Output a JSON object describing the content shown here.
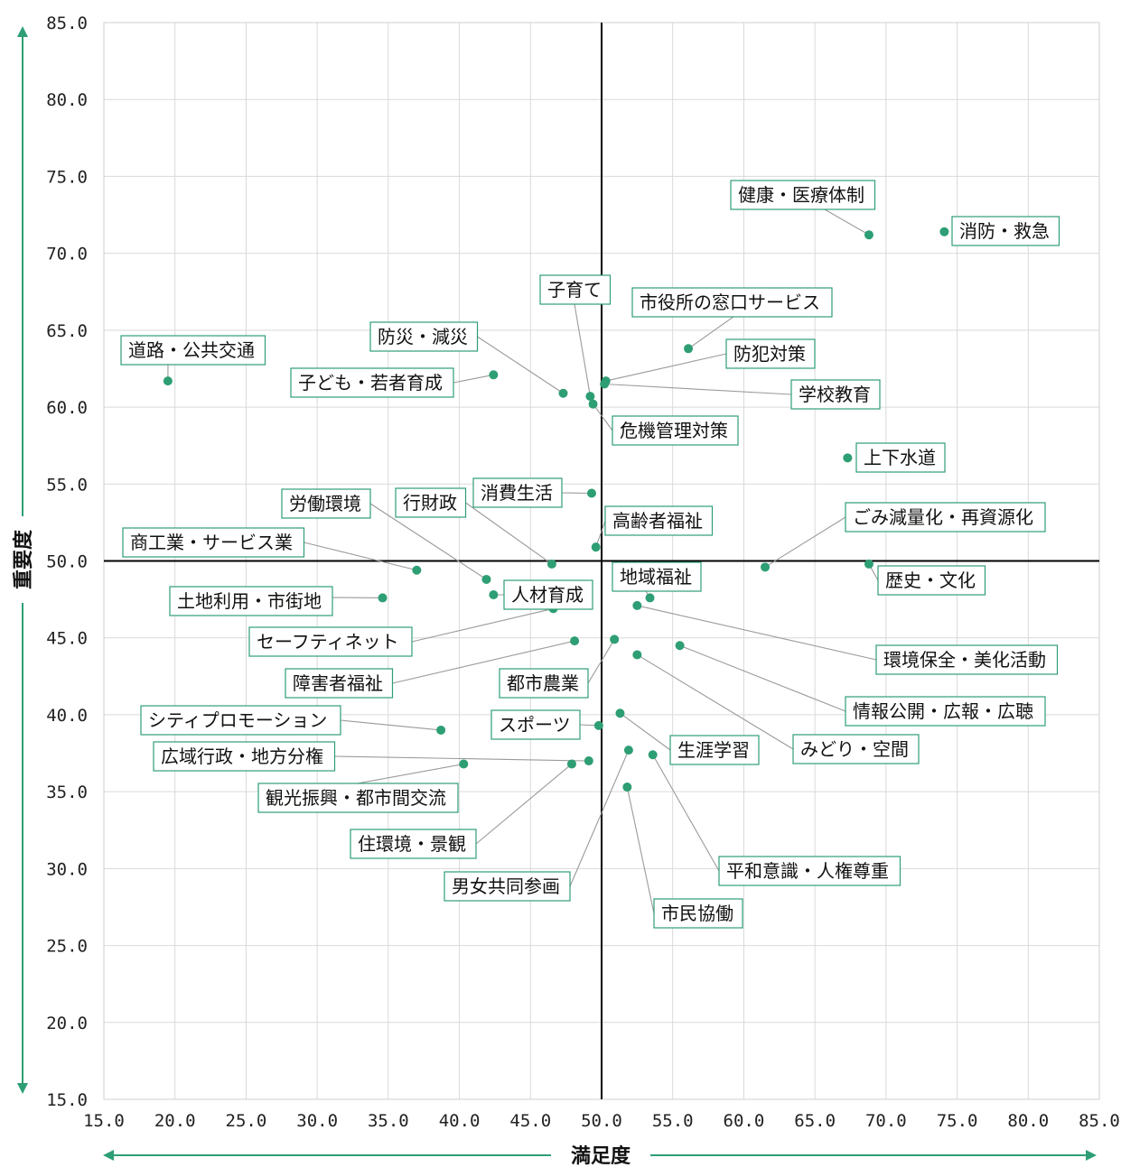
{
  "chart_data": {
    "type": "scatter",
    "xlabel": "満足度",
    "ylabel": "重要度",
    "xlim": [
      15,
      85
    ],
    "ylim": [
      15,
      85
    ],
    "xticks": [
      "15.0",
      "20.0",
      "25.0",
      "30.0",
      "35.0",
      "40.0",
      "45.0",
      "50.0",
      "55.0",
      "60.0",
      "65.0",
      "70.0",
      "75.0",
      "80.0",
      "85.0"
    ],
    "yticks": [
      "15.0",
      "20.0",
      "25.0",
      "30.0",
      "35.0",
      "40.0",
      "45.0",
      "50.0",
      "55.0",
      "60.0",
      "65.0",
      "70.0",
      "75.0",
      "80.0",
      "85.0"
    ],
    "grid": true,
    "reference_lines": {
      "x": 50,
      "y": 50
    },
    "colors": {
      "point": "#2e9e74",
      "label_border": "#2e9e74",
      "arrow": "#2e9e74",
      "grid": "#d9d9d9",
      "leader": "#9a9a9a"
    },
    "points": [
      {
        "name": "健康・医療体制",
        "x": 68.8,
        "y": 71.2
      },
      {
        "name": "消防・救急",
        "x": 74.1,
        "y": 71.4
      },
      {
        "name": "子育て",
        "x": 49.2,
        "y": 60.7
      },
      {
        "name": "市役所の窓口サービス",
        "x": 56.1,
        "y": 63.8
      },
      {
        "name": "防災・減災",
        "x": 47.3,
        "y": 60.9
      },
      {
        "name": "防犯対策",
        "x": 50.3,
        "y": 61.7
      },
      {
        "name": "道路・公共交通",
        "x": 19.5,
        "y": 61.7
      },
      {
        "name": "子ども・若者育成",
        "x": 42.4,
        "y": 62.1
      },
      {
        "name": "学校教育",
        "x": 50.2,
        "y": 61.5
      },
      {
        "name": "危機管理対策",
        "x": 49.4,
        "y": 60.2
      },
      {
        "name": "上下水道",
        "x": 67.3,
        "y": 56.7
      },
      {
        "name": "消費生活",
        "x": 49.3,
        "y": 54.4
      },
      {
        "name": "労働環境",
        "x": 41.9,
        "y": 48.8
      },
      {
        "name": "行財政",
        "x": 46.5,
        "y": 49.8
      },
      {
        "name": "高齢者福祉",
        "x": 49.6,
        "y": 50.9
      },
      {
        "name": "ごみ減量化・再資源化",
        "x": 61.5,
        "y": 49.6
      },
      {
        "name": "商工業・サービス業",
        "x": 37.0,
        "y": 49.4
      },
      {
        "name": "歴史・文化",
        "x": 68.8,
        "y": 49.8
      },
      {
        "name": "地域福祉",
        "x": 53.4,
        "y": 47.6
      },
      {
        "name": "土地利用・市街地",
        "x": 34.6,
        "y": 47.6
      },
      {
        "name": "人材育成",
        "x": 42.4,
        "y": 47.8
      },
      {
        "name": "セーフティネット",
        "x": 46.6,
        "y": 46.9
      },
      {
        "name": "環境保全・美化活動",
        "x": 52.5,
        "y": 47.1
      },
      {
        "name": "障害者福祉",
        "x": 48.1,
        "y": 44.8
      },
      {
        "name": "都市農業",
        "x": 50.9,
        "y": 44.9
      },
      {
        "name": "情報公開・広報・広聴",
        "x": 55.5,
        "y": 44.5
      },
      {
        "name": "みどり・空間",
        "x": 52.5,
        "y": 43.9
      },
      {
        "name": "シティプロモーション",
        "x": 38.7,
        "y": 39.0
      },
      {
        "name": "スポーツ",
        "x": 49.8,
        "y": 39.3
      },
      {
        "name": "生涯学習",
        "x": 51.3,
        "y": 40.1
      },
      {
        "name": "広域行政・地方分権",
        "x": 49.1,
        "y": 37.0
      },
      {
        "name": "観光振興・都市間交流",
        "x": 40.3,
        "y": 36.8
      },
      {
        "name": "住環境・景観",
        "x": 47.9,
        "y": 36.8
      },
      {
        "name": "平和意識・人権尊重",
        "x": 53.6,
        "y": 37.4
      },
      {
        "name": "男女共同参画",
        "x": 51.9,
        "y": 37.7
      },
      {
        "name": "市民協働",
        "x": 51.8,
        "y": 35.3
      }
    ]
  }
}
